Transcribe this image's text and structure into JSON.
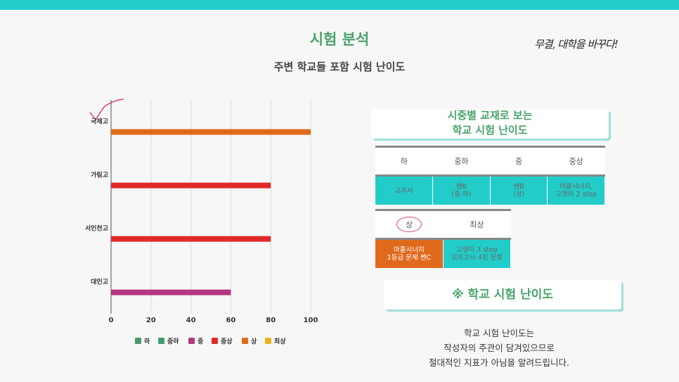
{
  "header": {
    "title": "시험 분석",
    "subtitle": "주변 학교들 포함 시험 난이도",
    "slogan": "무결, 대학을 바꾸다!"
  },
  "chart_data": {
    "type": "bar",
    "orientation": "horizontal",
    "categories": [
      "국제고",
      "가림고",
      "서인천고",
      "대인고"
    ],
    "values": [
      100,
      80,
      80,
      60
    ],
    "bar_levels": [
      "상",
      "중상",
      "중상",
      "중"
    ],
    "xlim": [
      0,
      100
    ],
    "xticks": [
      0,
      20,
      40,
      60,
      80,
      100
    ],
    "grid": true,
    "legend_position": "bottom",
    "legend": [
      {
        "name": "하",
        "color": "#4a9a6a"
      },
      {
        "name": "중하",
        "color": "#3fa070"
      },
      {
        "name": "중",
        "color": "#b5357f"
      },
      {
        "name": "중상",
        "color": "#e02a2a"
      },
      {
        "name": "상",
        "color": "#e06a1c"
      },
      {
        "name": "최상",
        "color": "#e8b21a"
      }
    ]
  },
  "difficulty_card": {
    "line1": "시중별 교재로 보는",
    "line2": "학교 시험 난이도"
  },
  "table1": {
    "headers": [
      "하",
      "중하",
      "중",
      "중상"
    ],
    "values": [
      [
        "교과서"
      ],
      [
        "쎈B",
        "(중,하)"
      ],
      [
        "쎈B",
        "(상)"
      ],
      [
        "마플시너지,",
        "고쟁이 2 step"
      ]
    ]
  },
  "table2": {
    "headers": [
      "상",
      "최상"
    ],
    "values": [
      [
        "마플시너지",
        "1등급 문제 쎈C"
      ],
      [
        "고쟁이 3 step",
        "모의고사 4점 문항"
      ]
    ]
  },
  "school_card": {
    "label": "※ 학교 시험 난이도"
  },
  "note": {
    "line1": "학교 시험 난이도는",
    "line2": "작성자의 주관이 담겨있으므로",
    "line3": "절대적인 지표가 아님을 알려드립니다."
  },
  "colors": {
    "teal": "#22cdc9",
    "green": "#4aa46a",
    "orange": "#e06a1c",
    "red": "#e02a2a",
    "magenta": "#b5357f"
  }
}
